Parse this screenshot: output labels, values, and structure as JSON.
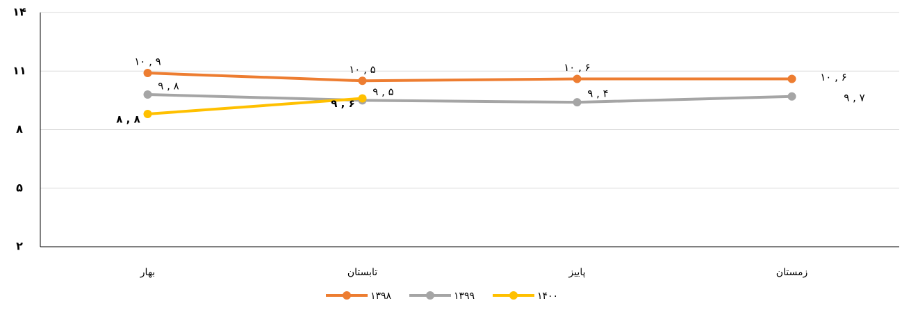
{
  "chart_data": {
    "type": "line",
    "categories": [
      "بهار",
      "تابستان",
      "پاییز",
      "زمستان"
    ],
    "series": [
      {
        "name": "۱۳۹۸",
        "color": "#ed7d31",
        "values": [
          10.9,
          10.5,
          10.6,
          10.6
        ],
        "value_labels": [
          "۱۰ , ۹",
          "۱۰ , ۵",
          "۱۰ , ۶",
          "۱۰ , ۶"
        ]
      },
      {
        "name": "۱۳۹۹",
        "color": "#a5a5a5",
        "values": [
          9.8,
          9.5,
          9.4,
          9.7
        ],
        "value_labels": [
          "۹ , ۸",
          "۹ , ۵",
          "۹ , ۴",
          "۹ , ۷"
        ]
      },
      {
        "name": "۱۴۰۰",
        "color": "#ffc000",
        "values": [
          8.8,
          9.6,
          null,
          null
        ],
        "value_labels": [
          "۸ , ۸",
          "۹ , ۶",
          null,
          null
        ]
      }
    ],
    "ylim": [
      2,
      14
    ],
    "yticks": [
      {
        "value": 2,
        "label": "۲"
      },
      {
        "value": 5,
        "label": "۵"
      },
      {
        "value": 8,
        "label": "۸"
      },
      {
        "value": 11,
        "label": "۱۱"
      },
      {
        "value": 14,
        "label": "۱۴"
      }
    ],
    "grid": true,
    "legend": "bottom"
  }
}
